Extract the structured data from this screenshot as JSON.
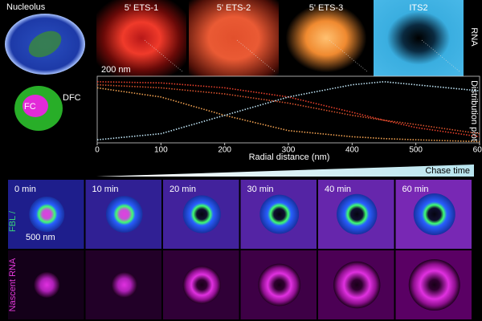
{
  "panels": {
    "nucleolus": "Nucleolus",
    "probes": [
      "5' ETS-1",
      "5' ETS-2",
      "5' ETS-3",
      "ITS2"
    ],
    "rna_label": "RNA",
    "scale_top": "200 nm",
    "dfc": "DFC",
    "fc": "FC"
  },
  "chart_data": {
    "type": "line",
    "ylabel": "Distribution plot",
    "xlabel": "Radial distance (nm)",
    "x": [
      0,
      100,
      200,
      300,
      400,
      450,
      500,
      600
    ],
    "xlim": [
      0,
      600
    ],
    "xticks": [
      0,
      100,
      200,
      300,
      400,
      500,
      600
    ],
    "ylim": [
      0,
      1.05
    ],
    "series": [
      {
        "color": "#e8402c",
        "values": [
          1.0,
          0.98,
          0.9,
          0.75,
          0.5,
          0.37,
          0.25,
          0.1
        ]
      },
      {
        "color": "#d9542e",
        "values": [
          0.95,
          0.9,
          0.8,
          0.65,
          0.45,
          0.37,
          0.3,
          0.15
        ]
      },
      {
        "color": "#f0a050",
        "values": [
          0.9,
          0.75,
          0.45,
          0.2,
          0.1,
          0.07,
          0.05,
          0.02
        ]
      },
      {
        "color": "#bfe4f5",
        "values": [
          0.05,
          0.15,
          0.45,
          0.75,
          0.95,
          1.0,
          0.95,
          0.85
        ]
      }
    ]
  },
  "chase": {
    "title": "Chase time",
    "times": [
      "0 min",
      "10 min",
      "20 min",
      "30 min",
      "40 min",
      "60 min"
    ],
    "top_label": "FBL /",
    "bottom_label": "Nascent RNA",
    "scale": "500 nm"
  }
}
